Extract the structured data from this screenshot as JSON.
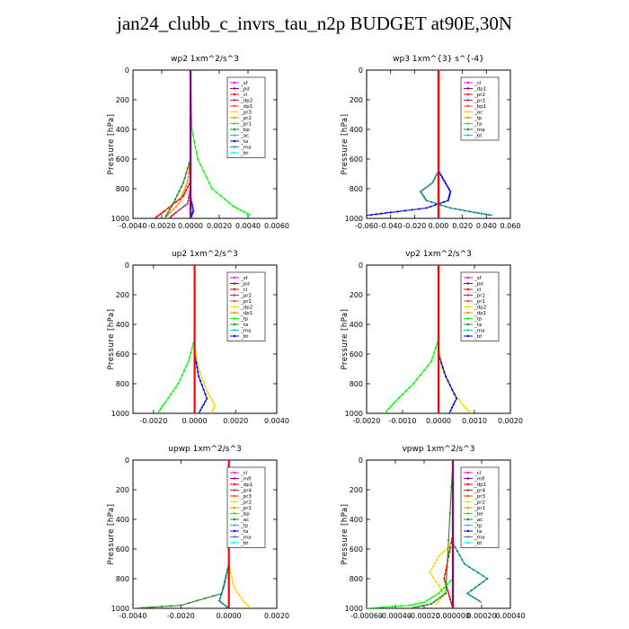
{
  "title": "jan24_clubb_c_invrs_tau_n2p  BUDGET at90E,30N",
  "chart_data": [
    {
      "id": "wp2",
      "type": "line",
      "title": "wp2   1xm^2/s^3",
      "ylabel": "Pressure  [hPa]",
      "xlim": [
        -0.004,
        0.006
      ],
      "ylim": [
        1000,
        0
      ],
      "xticks": [
        "-0.0040",
        "-0.0020",
        "0.0000",
        "0.0020",
        "0.0040",
        "0.0060"
      ],
      "yticks": [
        "0",
        "200",
        "400",
        "600",
        "800",
        "1000"
      ],
      "legend": [
        "_sf",
        "_pd",
        "_cl",
        "_dp2",
        "_dp1",
        "_pr3",
        "_pr2",
        "_pr1",
        "_bp",
        "_ac",
        "_ta",
        "_ma",
        "_bt"
      ],
      "series": [
        {
          "name": "_pr2",
          "color": "#ff8c00",
          "x": [
            0,
            0,
            -0.0002,
            -0.0008,
            -0.0018
          ],
          "y": [
            0,
            600,
            750,
            900,
            1000
          ]
        },
        {
          "name": "_dp1",
          "color": "#ff0000",
          "x": [
            0,
            0,
            -0.0005,
            -0.0018,
            -0.0025
          ],
          "y": [
            0,
            750,
            850,
            950,
            1000
          ]
        },
        {
          "name": "_bp",
          "color": "#228b22",
          "x": [
            0,
            0,
            -0.0005,
            -0.0012,
            -0.0018
          ],
          "y": [
            0,
            600,
            760,
            900,
            1000
          ]
        },
        {
          "name": "_ac",
          "color": "#00ff00",
          "x": [
            0,
            0.0001,
            0.0005,
            0.0015,
            0.003,
            0.0042
          ],
          "y": [
            0,
            400,
            600,
            800,
            920,
            980
          ]
        },
        {
          "name": "_dp2",
          "color": "#b03060",
          "x": [
            0,
            0,
            -0.0002,
            -0.001,
            -0.0015
          ],
          "y": [
            0,
            800,
            900,
            960,
            1000
          ]
        },
        {
          "name": "_ta",
          "color": "#0000ff",
          "x": [
            0,
            0,
            0.0002,
            0
          ],
          "y": [
            0,
            850,
            950,
            1000
          ]
        },
        {
          "name": "_pd",
          "color": "#8b008b",
          "x": [
            0,
            0
          ],
          "y": [
            0,
            1000
          ]
        }
      ]
    },
    {
      "id": "wp3",
      "type": "line",
      "title": "wp3   1xm^{3} s^{-4}",
      "ylabel": "Pressure  [hPa]",
      "xlim": [
        -0.06,
        0.06
      ],
      "ylim": [
        1000,
        0
      ],
      "xticks": [
        "-0.060",
        "-0.040",
        "-0.020",
        "0.000",
        "0.020",
        "0.040",
        "0.060"
      ],
      "yticks": [
        "0",
        "200",
        "400",
        "600",
        "800",
        "1000"
      ],
      "legend": [
        "_cl",
        "_dp1",
        "_pr2",
        "_pr1",
        "_bp1",
        "_ac",
        "_tp",
        "_ta",
        "_ma",
        "_bt"
      ],
      "series": [
        {
          "name": "_tp",
          "color": "#0000ff",
          "x": [
            0,
            0,
            0.005,
            0.01,
            0.008,
            -0.01,
            -0.04,
            -0.06
          ],
          "y": [
            0,
            680,
            750,
            820,
            880,
            930,
            960,
            980
          ]
        },
        {
          "name": "_ta",
          "color": "#008b8b",
          "x": [
            0,
            0,
            -0.005,
            -0.015,
            -0.01,
            0.01,
            0.03,
            0.045
          ],
          "y": [
            0,
            680,
            760,
            820,
            880,
            930,
            960,
            980
          ]
        },
        {
          "name": "_pr1",
          "color": "#ff8c00",
          "x": [
            0,
            0
          ],
          "y": [
            0,
            1000
          ]
        },
        {
          "name": "_dp1",
          "color": "#ff0000",
          "x": [
            0,
            0
          ],
          "y": [
            0,
            1000
          ]
        }
      ]
    },
    {
      "id": "up2",
      "type": "line",
      "title": "up2   1xm^2/s^3",
      "ylabel": "Pressure  [hPa]",
      "xlim": [
        -0.003,
        0.004
      ],
      "ylim": [
        1000,
        0
      ],
      "xticks": [
        "-0.0020",
        "0.0000",
        "0.0020",
        "0.0040"
      ],
      "xtick_values": [
        -0.002,
        0,
        0.002,
        0.004
      ],
      "yticks": [
        "0",
        "200",
        "400",
        "600",
        "800",
        "1000"
      ],
      "legend": [
        "_sf",
        "_pd",
        "_cl",
        "_pr2",
        "_pr1",
        "_dp2",
        "_dp1",
        "_tp",
        "_ta",
        "_ma",
        "_bt"
      ],
      "series": [
        {
          "name": "_pr1",
          "color": "#00ff00",
          "x": [
            0,
            0,
            -0.0003,
            -0.0008,
            -0.0014,
            -0.0018
          ],
          "y": [
            0,
            500,
            650,
            800,
            920,
            1000
          ]
        },
        {
          "name": "_pr2",
          "color": "#ffd700",
          "x": [
            0,
            0,
            0.0002,
            0.0006,
            0.001,
            0.0008
          ],
          "y": [
            0,
            550,
            700,
            850,
            950,
            1000
          ]
        },
        {
          "name": "_tp",
          "color": "#0000ff",
          "x": [
            0,
            0,
            0.0002,
            0.0006,
            0.0002
          ],
          "y": [
            0,
            600,
            750,
            900,
            1000
          ]
        },
        {
          "name": "_dp1",
          "color": "#ff0000",
          "x": [
            0,
            0
          ],
          "y": [
            0,
            1000
          ]
        }
      ]
    },
    {
      "id": "vp2",
      "type": "line",
      "title": "vp2   1xm^2/s^3",
      "ylabel": "Pressure  [hPa]",
      "xlim": [
        -0.002,
        0.002
      ],
      "ylim": [
        1000,
        0
      ],
      "xticks": [
        "-0.0020",
        "-0.0010",
        "0.0000",
        "0.0010",
        "0.0020"
      ],
      "yticks": [
        "0",
        "200",
        "400",
        "600",
        "800",
        "1000"
      ],
      "legend": [
        "_sf",
        "_pd",
        "_cl",
        "_pr2",
        "_pr1",
        "_dp2",
        "_dp1",
        "_tp",
        "_ta",
        "_ma",
        "_bt"
      ],
      "series": [
        {
          "name": "_pr1",
          "color": "#00ff00",
          "x": [
            0,
            0,
            -0.0002,
            -0.0007,
            -0.0012,
            -0.0015
          ],
          "y": [
            0,
            500,
            650,
            800,
            920,
            1000
          ]
        },
        {
          "name": "_pr2",
          "color": "#ffd700",
          "x": [
            0,
            0,
            0.0001,
            0.0004,
            0.0007,
            0.0009
          ],
          "y": [
            0,
            550,
            700,
            850,
            950,
            1000
          ]
        },
        {
          "name": "_tp",
          "color": "#0000ff",
          "x": [
            0,
            0,
            0.0002,
            0.0005,
            0.0003
          ],
          "y": [
            0,
            600,
            750,
            900,
            1000
          ]
        },
        {
          "name": "_dp1",
          "color": "#ff0000",
          "x": [
            0,
            0
          ],
          "y": [
            0,
            1000
          ]
        }
      ]
    },
    {
      "id": "upwp",
      "type": "line",
      "title": "upwp   1xm^2/s^3",
      "ylabel": "Pressure  [hPa]",
      "xlim": [
        -0.004,
        0.002
      ],
      "ylim": [
        1000,
        0
      ],
      "xticks": [
        "-0.0040",
        "-0.0020",
        "0.0000",
        "0.0020"
      ],
      "yticks": [
        "0",
        "200",
        "400",
        "600",
        "800",
        "1000"
      ],
      "legend": [
        "_cl",
        "_mfl",
        "_dp1",
        "_pr4",
        "_pr3",
        "_pr2",
        "_pr1",
        "_bp",
        "_ac",
        "_tp",
        "_ta",
        "_ma",
        "_bt"
      ],
      "series": [
        {
          "name": "_bp",
          "color": "#228b22",
          "x": [
            0,
            0,
            -0.0003,
            -0.002,
            -0.004
          ],
          "y": [
            0,
            700,
            900,
            980,
            1000
          ]
        },
        {
          "name": "_pr1",
          "color": "#ffd700",
          "x": [
            0,
            0,
            0.0002,
            0.0006,
            0.0009
          ],
          "y": [
            0,
            700,
            850,
            950,
            1000
          ]
        },
        {
          "name": "_tp",
          "color": "#008b8b",
          "x": [
            0,
            0,
            -0.0002,
            -0.0004,
            0
          ],
          "y": [
            0,
            700,
            850,
            950,
            1000
          ]
        },
        {
          "name": "_dp1",
          "color": "#ff0000",
          "x": [
            0,
            0
          ],
          "y": [
            0,
            1000
          ]
        }
      ]
    },
    {
      "id": "vpwp",
      "type": "line",
      "title": "vpwp   1xm^2/s^3",
      "ylabel": "Pressure  [hPa]",
      "xlim": [
        -0.0006,
        0.0004
      ],
      "ylim": [
        1000,
        0
      ],
      "xticks": [
        "-0.00060",
        "-0.00040",
        "-0.00020",
        "0.000000",
        "0.00020",
        "0.00040"
      ],
      "yticks": [
        "0",
        "200",
        "400",
        "600",
        "800",
        "1000"
      ],
      "legend": [
        "_cl",
        "_mfl",
        "_dp1",
        "_pr4",
        "_pr3",
        "_pr2",
        "_pr1",
        "_be",
        "_ac",
        "_tp",
        "_ta",
        "_ma",
        "_bt"
      ],
      "series": [
        {
          "name": "_dp1",
          "color": "#ff0000",
          "x": [
            0,
            0,
            -3e-05,
            -6e-05,
            -3e-05,
            0
          ],
          "y": [
            0,
            500,
            650,
            800,
            900,
            1000
          ]
        },
        {
          "name": "_pr1",
          "color": "#ffd700",
          "x": [
            0,
            0,
            -0.0001,
            -0.00016,
            -6e-05,
            -0.00012
          ],
          "y": [
            0,
            560,
            650,
            760,
            900,
            980
          ]
        },
        {
          "name": "_tp",
          "color": "#008b8b",
          "x": [
            0,
            0,
            8e-05,
            0.00024,
            0.0001,
            0.0002
          ],
          "y": [
            0,
            560,
            700,
            800,
            900,
            960
          ]
        },
        {
          "name": "_ac",
          "color": "#00ff00",
          "x": [
            0,
            0,
            -0.0001,
            -0.0002,
            -0.0003,
            -0.0006
          ],
          "y": [
            0,
            800,
            900,
            960,
            980,
            1000
          ]
        },
        {
          "name": "_bp",
          "color": "#228b22",
          "x": [
            0,
            -5e-05,
            -0.00015,
            -0.0003
          ],
          "y": [
            0,
            900,
            970,
            1000
          ]
        },
        {
          "name": "_pd",
          "color": "#8b008b",
          "x": [
            0,
            0
          ],
          "y": [
            0,
            1000
          ]
        }
      ]
    }
  ]
}
